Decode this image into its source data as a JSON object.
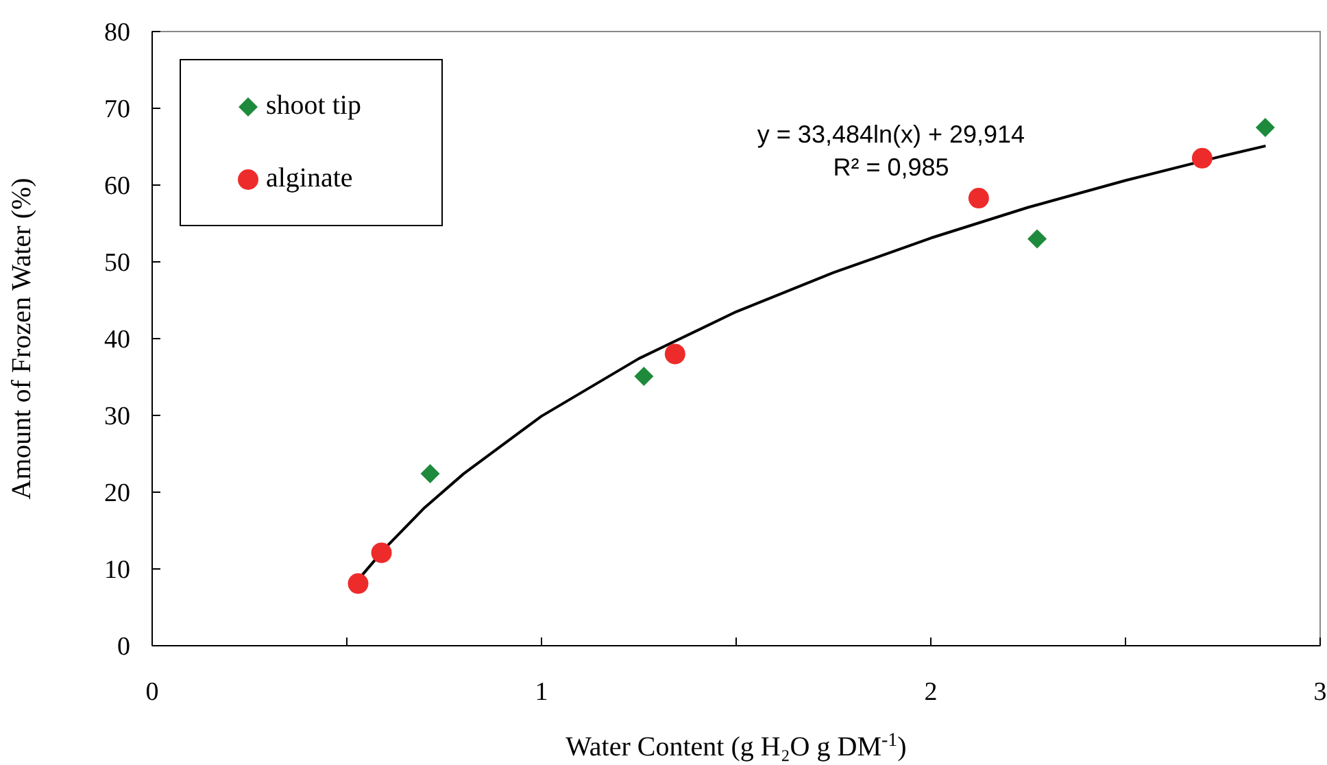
{
  "chart_data": {
    "type": "scatter",
    "xlabel": "Water Content (g H₂O g DM$^{-1}$)",
    "ylabel": "Amount of Frozen Water (%)",
    "xlim": [
      0,
      3
    ],
    "xticks": [
      0,
      {
        "value": 0.5,
        "label": null
      },
      1,
      {
        "value": 1.5,
        "label": null
      },
      2,
      {
        "value": 2.5,
        "label": null
      },
      3
    ],
    "ylim": [
      0,
      80
    ],
    "yticks": [
      0,
      10,
      20,
      30,
      40,
      50,
      60,
      70,
      80
    ],
    "series": [
      {
        "name": "shoot tip",
        "color": "#1e8a3c",
        "marker": "diamond",
        "x": [
          0.714,
          1.263,
          2.273,
          2.859
        ],
        "values": [
          22.4,
          35.1,
          53.0,
          67.5
        ]
      },
      {
        "name": "alginate",
        "color": "#ee2b2b",
        "marker": "circle",
        "x": [
          0.529,
          0.589,
          1.343,
          2.123,
          2.697
        ],
        "values": [
          8.1,
          12.1,
          38.0,
          58.3,
          63.5
        ]
      },
      {
        "type": "line",
        "color": "#000000",
        "marker": "none",
        "x": [
          0.53,
          0.6,
          0.7,
          0.8,
          1.0,
          1.25,
          1.5,
          1.75,
          2.0,
          2.25,
          2.5,
          2.75,
          2.86
        ],
        "values": [
          8.65,
          12.8,
          18.0,
          22.4,
          29.9,
          37.4,
          43.5,
          48.6,
          53.1,
          57.1,
          60.6,
          63.8,
          65.1
        ]
      }
    ],
    "annotations": [
      "y = 33,484ln(x)  + 29,914",
      "R² = 0,985"
    ],
    "legend": "top left",
    "grid": false
  }
}
